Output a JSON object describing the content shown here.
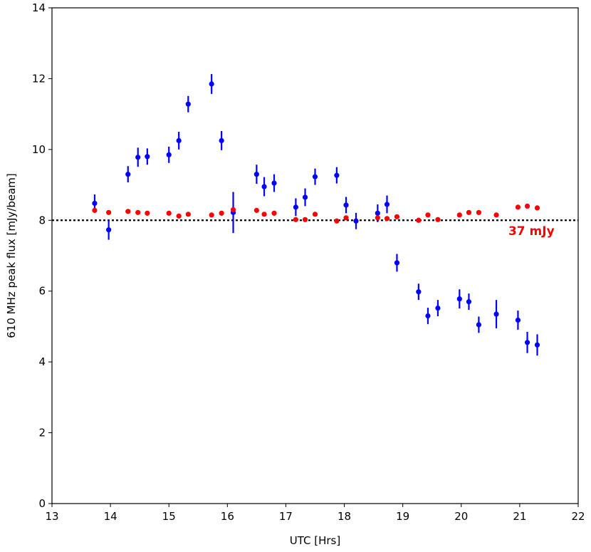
{
  "chart_data": {
    "type": "scatter",
    "xlabel": "UTC [Hrs]",
    "ylabel": "610 MHz peak flux [mJy/beam]",
    "xlim": [
      13,
      22
    ],
    "ylim": [
      0,
      14
    ],
    "xticks": [
      13,
      14,
      15,
      16,
      17,
      18,
      19,
      20,
      21,
      22
    ],
    "yticks": [
      0,
      2,
      4,
      6,
      8,
      10,
      12,
      14
    ],
    "grid": false,
    "legend": "none",
    "reference_line": {
      "y": 8.0,
      "style": "dotted",
      "color": "#000000"
    },
    "annotation": {
      "text": "37 mJy",
      "x": 21.2,
      "y": 7.7,
      "color": "#ff0000"
    },
    "series": [
      {
        "color": "#0000ff",
        "errorbars": true,
        "points": [
          {
            "x": 13.73,
            "y": 8.48,
            "err": 0.25
          },
          {
            "x": 13.97,
            "y": 7.73,
            "err": 0.28
          },
          {
            "x": 14.3,
            "y": 9.3,
            "err": 0.23
          },
          {
            "x": 14.47,
            "y": 9.78,
            "err": 0.27
          },
          {
            "x": 14.63,
            "y": 9.8,
            "err": 0.23
          },
          {
            "x": 15.0,
            "y": 9.85,
            "err": 0.23
          },
          {
            "x": 15.17,
            "y": 10.25,
            "err": 0.25
          },
          {
            "x": 15.33,
            "y": 11.28,
            "err": 0.23
          },
          {
            "x": 15.73,
            "y": 11.85,
            "err": 0.28
          },
          {
            "x": 15.9,
            "y": 10.25,
            "err": 0.27
          },
          {
            "x": 16.1,
            "y": 8.22,
            "err": 0.58
          },
          {
            "x": 16.5,
            "y": 9.3,
            "err": 0.27
          },
          {
            "x": 16.63,
            "y": 8.95,
            "err": 0.27
          },
          {
            "x": 16.8,
            "y": 9.05,
            "err": 0.25
          },
          {
            "x": 17.17,
            "y": 8.37,
            "err": 0.25
          },
          {
            "x": 17.33,
            "y": 8.65,
            "err": 0.25
          },
          {
            "x": 17.5,
            "y": 9.23,
            "err": 0.23
          },
          {
            "x": 17.87,
            "y": 9.27,
            "err": 0.23
          },
          {
            "x": 18.03,
            "y": 8.43,
            "err": 0.23
          },
          {
            "x": 18.2,
            "y": 7.98,
            "err": 0.23
          },
          {
            "x": 18.57,
            "y": 8.2,
            "err": 0.25
          },
          {
            "x": 18.73,
            "y": 8.45,
            "err": 0.25
          },
          {
            "x": 18.9,
            "y": 6.8,
            "err": 0.25
          },
          {
            "x": 19.27,
            "y": 5.98,
            "err": 0.23
          },
          {
            "x": 19.43,
            "y": 5.3,
            "err": 0.23
          },
          {
            "x": 19.6,
            "y": 5.52,
            "err": 0.23
          },
          {
            "x": 19.97,
            "y": 5.78,
            "err": 0.27
          },
          {
            "x": 20.13,
            "y": 5.7,
            "err": 0.23
          },
          {
            "x": 20.3,
            "y": 5.05,
            "err": 0.23
          },
          {
            "x": 20.6,
            "y": 5.35,
            "err": 0.4
          },
          {
            "x": 20.97,
            "y": 5.18,
            "err": 0.27
          },
          {
            "x": 21.13,
            "y": 4.55,
            "err": 0.3
          },
          {
            "x": 21.3,
            "y": 4.48,
            "err": 0.3
          }
        ]
      },
      {
        "color": "#ff0000",
        "errorbars": false,
        "points": [
          {
            "x": 13.73,
            "y": 8.28
          },
          {
            "x": 13.97,
            "y": 8.22
          },
          {
            "x": 14.3,
            "y": 8.25
          },
          {
            "x": 14.47,
            "y": 8.22
          },
          {
            "x": 14.63,
            "y": 8.2
          },
          {
            "x": 15.0,
            "y": 8.2
          },
          {
            "x": 15.17,
            "y": 8.12
          },
          {
            "x": 15.33,
            "y": 8.17
          },
          {
            "x": 15.73,
            "y": 8.15
          },
          {
            "x": 15.9,
            "y": 8.2
          },
          {
            "x": 16.1,
            "y": 8.3
          },
          {
            "x": 16.5,
            "y": 8.28
          },
          {
            "x": 16.63,
            "y": 8.17
          },
          {
            "x": 16.8,
            "y": 8.2
          },
          {
            "x": 17.17,
            "y": 8.02
          },
          {
            "x": 17.33,
            "y": 8.02
          },
          {
            "x": 17.5,
            "y": 8.17
          },
          {
            "x": 17.87,
            "y": 7.98
          },
          {
            "x": 18.03,
            "y": 8.07
          },
          {
            "x": 18.57,
            "y": 8.07
          },
          {
            "x": 18.73,
            "y": 8.05
          },
          {
            "x": 18.9,
            "y": 8.1
          },
          {
            "x": 19.27,
            "y": 8.0
          },
          {
            "x": 19.43,
            "y": 8.15
          },
          {
            "x": 19.6,
            "y": 8.02
          },
          {
            "x": 19.97,
            "y": 8.15
          },
          {
            "x": 20.13,
            "y": 8.22
          },
          {
            "x": 20.3,
            "y": 8.22
          },
          {
            "x": 20.6,
            "y": 8.15
          },
          {
            "x": 20.97,
            "y": 8.37
          },
          {
            "x": 21.13,
            "y": 8.4
          },
          {
            "x": 21.3,
            "y": 8.35
          }
        ]
      }
    ]
  }
}
